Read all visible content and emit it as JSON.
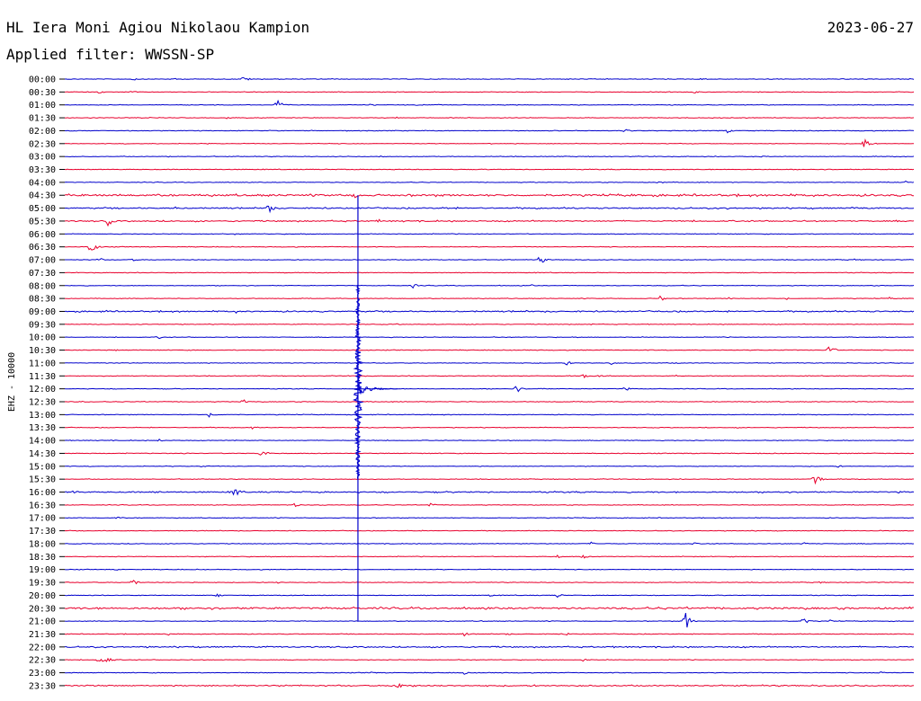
{
  "chart_data": {
    "type": "line",
    "title": "HL Iera Moni Agiou Nikolaou Kampion",
    "date": "2023-06-27",
    "subtitle": "Applied filter: WWSSN-SP",
    "ylabel": "EHZ - 10000",
    "colors": [
      "#0000cc",
      "#e8002d"
    ],
    "traces": [
      {
        "time": "00:00",
        "bursts": [
          [
            0.08,
            2
          ],
          [
            0.13,
            1
          ],
          [
            0.21,
            5
          ],
          [
            0.75,
            2
          ],
          [
            0.94,
            1
          ]
        ]
      },
      {
        "time": "00:30",
        "bursts": [
          [
            0.04,
            3
          ],
          [
            0.08,
            2
          ],
          [
            0.74,
            3
          ]
        ]
      },
      {
        "time": "01:00",
        "bursts": [
          [
            0.25,
            7
          ],
          [
            0.36,
            2
          ],
          [
            0.76,
            1
          ]
        ]
      },
      {
        "time": "01:30",
        "bursts": [
          [
            0.19,
            3
          ],
          [
            0.1,
            1
          ],
          [
            0.39,
            1
          ]
        ]
      },
      {
        "time": "02:00",
        "bursts": [
          [
            0.66,
            3
          ],
          [
            0.78,
            3
          ]
        ]
      },
      {
        "time": "02:30",
        "bursts": [
          [
            0.94,
            11
          ],
          [
            0.17,
            1
          ],
          [
            0.5,
            1
          ]
        ]
      },
      {
        "time": "03:00",
        "bursts": [
          [
            0.37,
            2
          ],
          [
            0.12,
            1
          ],
          [
            0.82,
            1
          ]
        ]
      },
      {
        "time": "03:30",
        "bursts": [
          [
            0.4,
            1
          ]
        ]
      },
      {
        "time": "04:00",
        "bursts": [
          [
            0.55,
            1
          ],
          [
            0.7,
            2
          ],
          [
            0.99,
            2
          ]
        ]
      },
      {
        "time": "04:30",
        "bursts": [
          [
            0.34,
            4
          ],
          [
            0.02,
            2
          ],
          [
            0.85,
            2
          ]
        ]
      },
      {
        "time": "05:00",
        "bursts": [
          [
            0.24,
            7
          ],
          [
            0.13,
            2
          ],
          [
            0.45,
            2
          ],
          [
            0.6,
            2
          ],
          [
            0.78,
            2
          ],
          [
            0.93,
            2
          ]
        ]
      },
      {
        "time": "05:30",
        "bursts": [
          [
            0.05,
            8
          ],
          [
            0.37,
            2
          ]
        ]
      },
      {
        "time": "06:00",
        "bursts": [
          [
            0.2,
            1
          ]
        ]
      },
      {
        "time": "06:30",
        "bursts": [
          [
            0.03,
            13
          ]
        ]
      },
      {
        "time": "07:00",
        "bursts": [
          [
            0.04,
            3
          ],
          [
            0.08,
            2
          ],
          [
            0.43,
            1
          ],
          [
            0.56,
            6
          ],
          [
            0.93,
            1
          ]
        ]
      },
      {
        "time": "07:30",
        "bursts": [
          [
            0.1,
            1
          ]
        ]
      },
      {
        "time": "08:00",
        "bursts": [
          [
            0.41,
            3
          ],
          [
            0.55,
            1
          ]
        ]
      },
      {
        "time": "08:30",
        "bursts": [
          [
            0.7,
            5
          ],
          [
            0.78,
            2
          ],
          [
            0.85,
            2
          ],
          [
            0.97,
            2
          ]
        ]
      },
      {
        "time": "09:00",
        "bursts": [
          [
            0.05,
            3
          ],
          [
            0.2,
            3
          ],
          [
            0.82,
            1
          ]
        ]
      },
      {
        "time": "09:30",
        "bursts": [
          [
            0.09,
            1
          ],
          [
            0.39,
            1
          ],
          [
            0.62,
            1
          ]
        ]
      },
      {
        "time": "10:00",
        "bursts": [
          [
            0.11,
            2
          ]
        ]
      },
      {
        "time": "10:30",
        "bursts": [
          [
            0.9,
            10
          ],
          [
            0.06,
            1
          ]
        ]
      },
      {
        "time": "11:00",
        "bursts": [
          [
            0.59,
            4
          ],
          [
            0.64,
            4
          ],
          [
            0.72,
            1
          ]
        ]
      },
      {
        "time": "11:30",
        "bursts": [
          [
            0.61,
            3
          ],
          [
            0.63,
            2
          ],
          [
            0.72,
            1
          ]
        ]
      },
      {
        "time": "12:00",
        "bursts": [
          [
            0.53,
            8
          ],
          [
            0.56,
            2
          ],
          [
            0.66,
            3
          ],
          [
            0.98,
            2
          ]
        ]
      },
      {
        "time": "12:30",
        "bursts": [
          [
            0.21,
            3
          ],
          [
            0.02,
            1
          ]
        ]
      },
      {
        "time": "13:00",
        "bursts": [
          [
            0.17,
            4
          ]
        ]
      },
      {
        "time": "13:30",
        "bursts": [
          [
            0.22,
            2
          ],
          [
            0.79,
            1
          ]
        ]
      },
      {
        "time": "14:00",
        "bursts": [
          [
            0.11,
            2
          ],
          [
            0.2,
            1
          ]
        ]
      },
      {
        "time": "14:30",
        "bursts": [
          [
            0.23,
            10
          ],
          [
            0.14,
            2
          ]
        ]
      },
      {
        "time": "15:00",
        "bursts": [
          [
            0.16,
            2
          ],
          [
            0.91,
            2
          ]
        ]
      },
      {
        "time": "15:30",
        "bursts": [
          [
            0.88,
            25
          ]
        ]
      },
      {
        "time": "16:00",
        "bursts": [
          [
            0.2,
            9
          ],
          [
            0.01,
            3
          ],
          [
            0.11,
            2
          ],
          [
            0.84,
            2
          ],
          [
            0.98,
            2
          ]
        ]
      },
      {
        "time": "16:30",
        "bursts": [
          [
            0.27,
            3
          ],
          [
            0.3,
            2
          ],
          [
            0.43,
            4
          ]
        ]
      },
      {
        "time": "17:00",
        "bursts": [
          [
            0.06,
            2
          ],
          [
            0.51,
            1
          ],
          [
            0.67,
            1
          ]
        ]
      },
      {
        "time": "17:30",
        "bursts": [
          [
            0.96,
            1
          ]
        ]
      },
      {
        "time": "18:00",
        "bursts": [
          [
            0.62,
            2
          ],
          [
            0.74,
            2
          ],
          [
            0.87,
            2
          ]
        ]
      },
      {
        "time": "18:30",
        "bursts": [
          [
            0.58,
            2
          ],
          [
            0.61,
            3
          ]
        ]
      },
      {
        "time": "19:00",
        "bursts": [
          [
            0.06,
            1
          ],
          [
            0.3,
            1
          ],
          [
            0.55,
            1
          ]
        ]
      },
      {
        "time": "19:30",
        "bursts": [
          [
            0.08,
            5
          ],
          [
            0.15,
            1
          ],
          [
            0.25,
            2
          ],
          [
            0.89,
            2
          ]
        ]
      },
      {
        "time": "20:00",
        "bursts": [
          [
            0.18,
            3
          ],
          [
            0.5,
            2
          ],
          [
            0.58,
            3
          ]
        ]
      },
      {
        "time": "20:30",
        "bursts": [
          [
            0.11,
            1
          ]
        ]
      },
      {
        "time": "21:00",
        "bursts": [
          [
            0.73,
            14
          ],
          [
            0.87,
            5
          ],
          [
            0.9,
            2
          ],
          [
            0.17,
            1
          ],
          [
            0.49,
            1
          ]
        ]
      },
      {
        "time": "21:30",
        "bursts": [
          [
            0.12,
            3
          ],
          [
            0.47,
            3
          ],
          [
            0.52,
            2
          ],
          [
            0.59,
            2
          ]
        ]
      },
      {
        "time": "22:00",
        "bursts": [
          [
            0.3,
            1
          ]
        ]
      },
      {
        "time": "22:30",
        "bursts": [
          [
            0.04,
            6
          ],
          [
            0.05,
            5
          ],
          [
            0.61,
            3
          ]
        ]
      },
      {
        "time": "23:00",
        "bursts": [
          [
            0.36,
            2
          ],
          [
            0.47,
            2
          ],
          [
            0.96,
            2
          ]
        ]
      },
      {
        "time": "23:30",
        "bursts": [
          [
            0.39,
            9
          ],
          [
            0.41,
            2
          ]
        ]
      }
    ],
    "noise_level": [
      1,
      1,
      1,
      1,
      1,
      1,
      1,
      1,
      1,
      3,
      2,
      2,
      1,
      1,
      1,
      1,
      1,
      1,
      2,
      1,
      1,
      1,
      1,
      1,
      1,
      1,
      1,
      1,
      1,
      1,
      1,
      1,
      2,
      1,
      1,
      1,
      1,
      1,
      1,
      1,
      1,
      3,
      1,
      1,
      2,
      1,
      1,
      2
    ],
    "event": {
      "x_fraction": 0.34,
      "start_trace": 9,
      "end_trace": 42,
      "peak_trace": 24
    }
  }
}
